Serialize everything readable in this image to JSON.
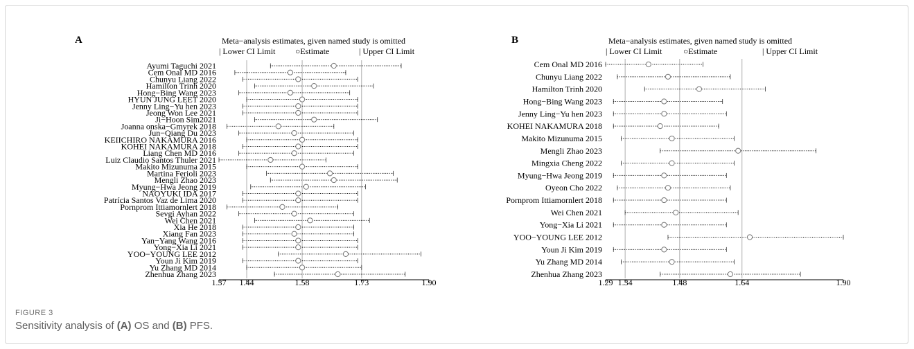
{
  "figure": {
    "label": "FIGURE 3",
    "caption_pre": "Sensitivity analysis of ",
    "caption_a": "(A)",
    "caption_mid1": " OS and ",
    "caption_b": "(B)",
    "caption_post": " PFS."
  },
  "colors": {
    "axis": "#000000",
    "dotted": "#000000",
    "estimate": "#777777",
    "caption": "#5f5f5f"
  },
  "chart_data": [
    {
      "type": "forest",
      "panel": "A",
      "title": "Meta−analysis estimates, given named study is omitted",
      "legend": {
        "lower": "Lower CI Limit",
        "estimate": "○Estimate",
        "upper": "Upper CI Limit"
      },
      "xlim": [
        1.37,
        1.9
      ],
      "ticks": [
        1.37,
        1.44,
        1.58,
        1.73,
        1.9
      ],
      "tick_labels": [
        "1.37",
        "1.44",
        "1.58",
        "1.73",
        "1.90"
      ],
      "ref_lines": [
        1.44,
        1.58,
        1.73
      ],
      "studies": [
        {
          "name": "Ayumi Taguchi 2021",
          "lower": 1.5,
          "est": 1.66,
          "upper": 1.83
        },
        {
          "name": "Cem Onal MD 2016",
          "lower": 1.41,
          "est": 1.55,
          "upper": 1.69
        },
        {
          "name": "Chunyu Liang 2022",
          "lower": 1.43,
          "est": 1.57,
          "upper": 1.72
        },
        {
          "name": "Hamilton Trinh 2020",
          "lower": 1.46,
          "est": 1.61,
          "upper": 1.76
        },
        {
          "name": "Hong−Bing Wang 2023",
          "lower": 1.42,
          "est": 1.55,
          "upper": 1.7
        },
        {
          "name": "HYUN JUNG LEET 2020",
          "lower": 1.44,
          "est": 1.58,
          "upper": 1.72
        },
        {
          "name": "Jenny Ling−Yu hen 2023",
          "lower": 1.43,
          "est": 1.57,
          "upper": 1.72
        },
        {
          "name": "Jeong Won Lee 2021",
          "lower": 1.43,
          "est": 1.57,
          "upper": 1.72
        },
        {
          "name": "Ji−Hoon Sim2021",
          "lower": 1.46,
          "est": 1.61,
          "upper": 1.77
        },
        {
          "name": "Joanna onska−Gmyrek 2018",
          "lower": 1.39,
          "est": 1.52,
          "upper": 1.66
        },
        {
          "name": "Jun−Qiang Du 2023",
          "lower": 1.42,
          "est": 1.56,
          "upper": 1.71
        },
        {
          "name": "KEIICHIRO NAKAMURA 2016",
          "lower": 1.44,
          "est": 1.58,
          "upper": 1.72
        },
        {
          "name": "KOHEI NAKAMURA 2018",
          "lower": 1.43,
          "est": 1.57,
          "upper": 1.72
        },
        {
          "name": "Liang Chen MD 2016",
          "lower": 1.42,
          "est": 1.56,
          "upper": 1.71
        },
        {
          "name": "Luiz Claudio Santos Thuler 2021",
          "lower": 1.37,
          "est": 1.5,
          "upper": 1.64
        },
        {
          "name": "Makito Mizunuma 2015",
          "lower": 1.44,
          "est": 1.58,
          "upper": 1.72
        },
        {
          "name": "Martina Ferioli 2023",
          "lower": 1.49,
          "est": 1.65,
          "upper": 1.81
        },
        {
          "name": "Mengli Zhao 2023",
          "lower": 1.5,
          "est": 1.66,
          "upper": 1.82
        },
        {
          "name": "Myung−Hwa Jeong 2019",
          "lower": 1.45,
          "est": 1.59,
          "upper": 1.74
        },
        {
          "name": "NAOYUKI IDA 2017",
          "lower": 1.43,
          "est": 1.57,
          "upper": 1.72
        },
        {
          "name": "Patrícia Santos Vaz de Lima 2020",
          "lower": 1.43,
          "est": 1.57,
          "upper": 1.72
        },
        {
          "name": "Pornprom Ittiamornlert 2018",
          "lower": 1.39,
          "est": 1.53,
          "upper": 1.67
        },
        {
          "name": "Sevgi Ayhan 2022",
          "lower": 1.42,
          "est": 1.56,
          "upper": 1.71
        },
        {
          "name": "Wei Chen 2021",
          "lower": 1.46,
          "est": 1.6,
          "upper": 1.75
        },
        {
          "name": "Xia He 2018",
          "lower": 1.43,
          "est": 1.57,
          "upper": 1.71
        },
        {
          "name": "Xiang Fan 2023",
          "lower": 1.43,
          "est": 1.56,
          "upper": 1.71
        },
        {
          "name": "Yan−Yang Wang 2016",
          "lower": 1.43,
          "est": 1.57,
          "upper": 1.72
        },
        {
          "name": "Yong−Xia Li 2021",
          "lower": 1.43,
          "est": 1.57,
          "upper": 1.72
        },
        {
          "name": "YOO−YOUNG LEE 2012",
          "lower": 1.52,
          "est": 1.69,
          "upper": 1.88
        },
        {
          "name": "Youn Ji Kim 2019",
          "lower": 1.43,
          "est": 1.57,
          "upper": 1.72
        },
        {
          "name": "Yu Zhang MD 2014",
          "lower": 1.44,
          "est": 1.58,
          "upper": 1.73
        },
        {
          "name": "Zhenhua Zhang 2023",
          "lower": 1.51,
          "est": 1.67,
          "upper": 1.84
        }
      ]
    },
    {
      "type": "forest",
      "panel": "B",
      "title": "Meta−analysis estimates, given named study is omitted",
      "legend": {
        "lower": "Lower CI Limit",
        "estimate": "○Estimate",
        "upper": "Upper CI Limit"
      },
      "xlim": [
        1.29,
        1.9
      ],
      "ticks": [
        1.29,
        1.34,
        1.48,
        1.64,
        1.9
      ],
      "tick_labels": [
        "1.29",
        "1.34",
        "1.48",
        "1.64",
        "1.90"
      ],
      "ref_lines": [
        1.34,
        1.48,
        1.64
      ],
      "studies": [
        {
          "name": "Cem Onal MD 2016",
          "lower": 1.29,
          "est": 1.4,
          "upper": 1.54
        },
        {
          "name": "Chunyu Liang 2022",
          "lower": 1.32,
          "est": 1.45,
          "upper": 1.61
        },
        {
          "name": "Hamilton Trinh 2020",
          "lower": 1.39,
          "est": 1.53,
          "upper": 1.7
        },
        {
          "name": "Hong−Bing Wang 2023",
          "lower": 1.31,
          "est": 1.44,
          "upper": 1.59
        },
        {
          "name": "Jenny Ling−Yu hen 2023",
          "lower": 1.31,
          "est": 1.44,
          "upper": 1.6
        },
        {
          "name": "KOHEI NAKAMURA 2018",
          "lower": 1.31,
          "est": 1.43,
          "upper": 1.58
        },
        {
          "name": "Makito Mizunuma 2015",
          "lower": 1.33,
          "est": 1.46,
          "upper": 1.62
        },
        {
          "name": "Mengli Zhao 2023",
          "lower": 1.43,
          "est": 1.63,
          "upper": 1.83
        },
        {
          "name": "Mingxia Cheng 2022",
          "lower": 1.33,
          "est": 1.46,
          "upper": 1.62
        },
        {
          "name": "Myung−Hwa Jeong 2019",
          "lower": 1.31,
          "est": 1.44,
          "upper": 1.6
        },
        {
          "name": "Oyeon Cho 2022",
          "lower": 1.32,
          "est": 1.45,
          "upper": 1.61
        },
        {
          "name": "Pornprom Ittiamornlert 2018",
          "lower": 1.31,
          "est": 1.44,
          "upper": 1.6
        },
        {
          "name": "Wei Chen 2021",
          "lower": 1.34,
          "est": 1.47,
          "upper": 1.63
        },
        {
          "name": "Yong−Xia Li 2021",
          "lower": 1.31,
          "est": 1.44,
          "upper": 1.6
        },
        {
          "name": "YOO−YOUNG LEE 2012",
          "lower": 1.45,
          "est": 1.66,
          "upper": 1.9
        },
        {
          "name": "Youn Ji Kim 2019",
          "lower": 1.31,
          "est": 1.44,
          "upper": 1.6
        },
        {
          "name": "Yu Zhang MD 2014",
          "lower": 1.33,
          "est": 1.46,
          "upper": 1.62
        },
        {
          "name": "Zhenhua Zhang 2023",
          "lower": 1.43,
          "est": 1.61,
          "upper": 1.79
        }
      ]
    }
  ]
}
